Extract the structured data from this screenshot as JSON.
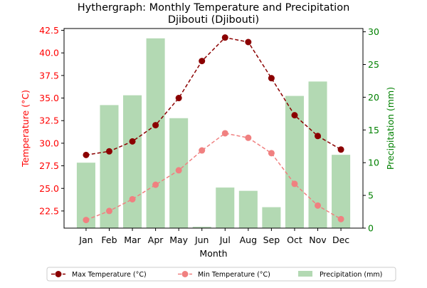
{
  "chart_data": {
    "type": "bar+line",
    "title": "Hythergraph: Monthly Temperature and Precipitation",
    "subtitle": "Djibouti (Djibouti)",
    "xlabel": "Month",
    "ylabel_left": "Temperature (°C)",
    "ylabel_right": "Precipitation (mm)",
    "categories": [
      "Jan",
      "Feb",
      "Mar",
      "Apr",
      "May",
      "Jun",
      "Jul",
      "Aug",
      "Sep",
      "Oct",
      "Nov",
      "Dec"
    ],
    "ylim_left": [
      20.6,
      42.7
    ],
    "ylim_right": [
      0,
      30.5
    ],
    "yticks_left": [
      "22.5",
      "25.0",
      "27.5",
      "30.0",
      "32.5",
      "35.0",
      "37.5",
      "40.0",
      "42.5"
    ],
    "yticks_right": [
      "0",
      "5",
      "10",
      "15",
      "20",
      "25",
      "30"
    ],
    "series": [
      {
        "name": "Max Temperature (°C)",
        "kind": "line",
        "axis": "left",
        "color": "#8b0000",
        "values": [
          28.7,
          29.1,
          30.2,
          32.0,
          35.0,
          39.1,
          41.7,
          41.2,
          37.2,
          33.1,
          30.8,
          29.3
        ]
      },
      {
        "name": "Min Temperature (°C)",
        "kind": "line",
        "axis": "left",
        "color": "#f08080",
        "values": [
          21.5,
          22.5,
          23.8,
          25.4,
          27.0,
          29.2,
          31.1,
          30.6,
          28.9,
          25.5,
          23.1,
          21.6
        ]
      },
      {
        "name": "Precipitation (mm)",
        "kind": "bar",
        "axis": "right",
        "color": "#b3d9b3",
        "values": [
          10.0,
          18.8,
          20.3,
          29.0,
          16.8,
          0.2,
          6.2,
          5.7,
          3.2,
          20.2,
          22.4,
          11.2
        ]
      }
    ],
    "legend_position": "bottom-center",
    "grid": false
  }
}
